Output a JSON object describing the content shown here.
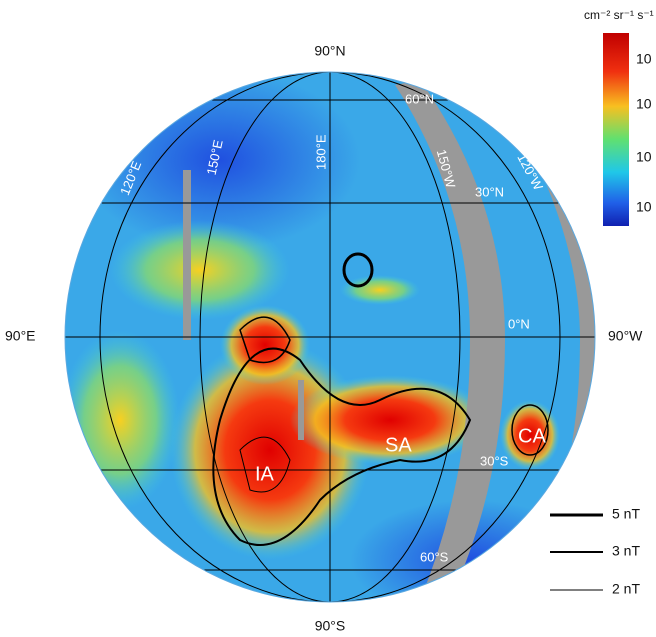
{
  "colorbar": {
    "unit": "cm⁻² sr⁻¹ s⁻¹",
    "tick_labels": [
      "10",
      "10",
      "10",
      "10"
    ]
  },
  "axes": {
    "top": "90°N",
    "bottom": "90°S",
    "left": "90°E",
    "right": "90°W"
  },
  "grid_labels": {
    "lat": [
      "60°N",
      "30°N",
      "0°N",
      "30°S",
      "60°S"
    ],
    "lon": [
      "120°E",
      "150°E",
      "180°E",
      "150°W",
      "120°W"
    ]
  },
  "regions": [
    "IA",
    "SA",
    "CA"
  ],
  "legend": [
    "5 nT",
    "3 nT",
    "2 nT"
  ]
}
